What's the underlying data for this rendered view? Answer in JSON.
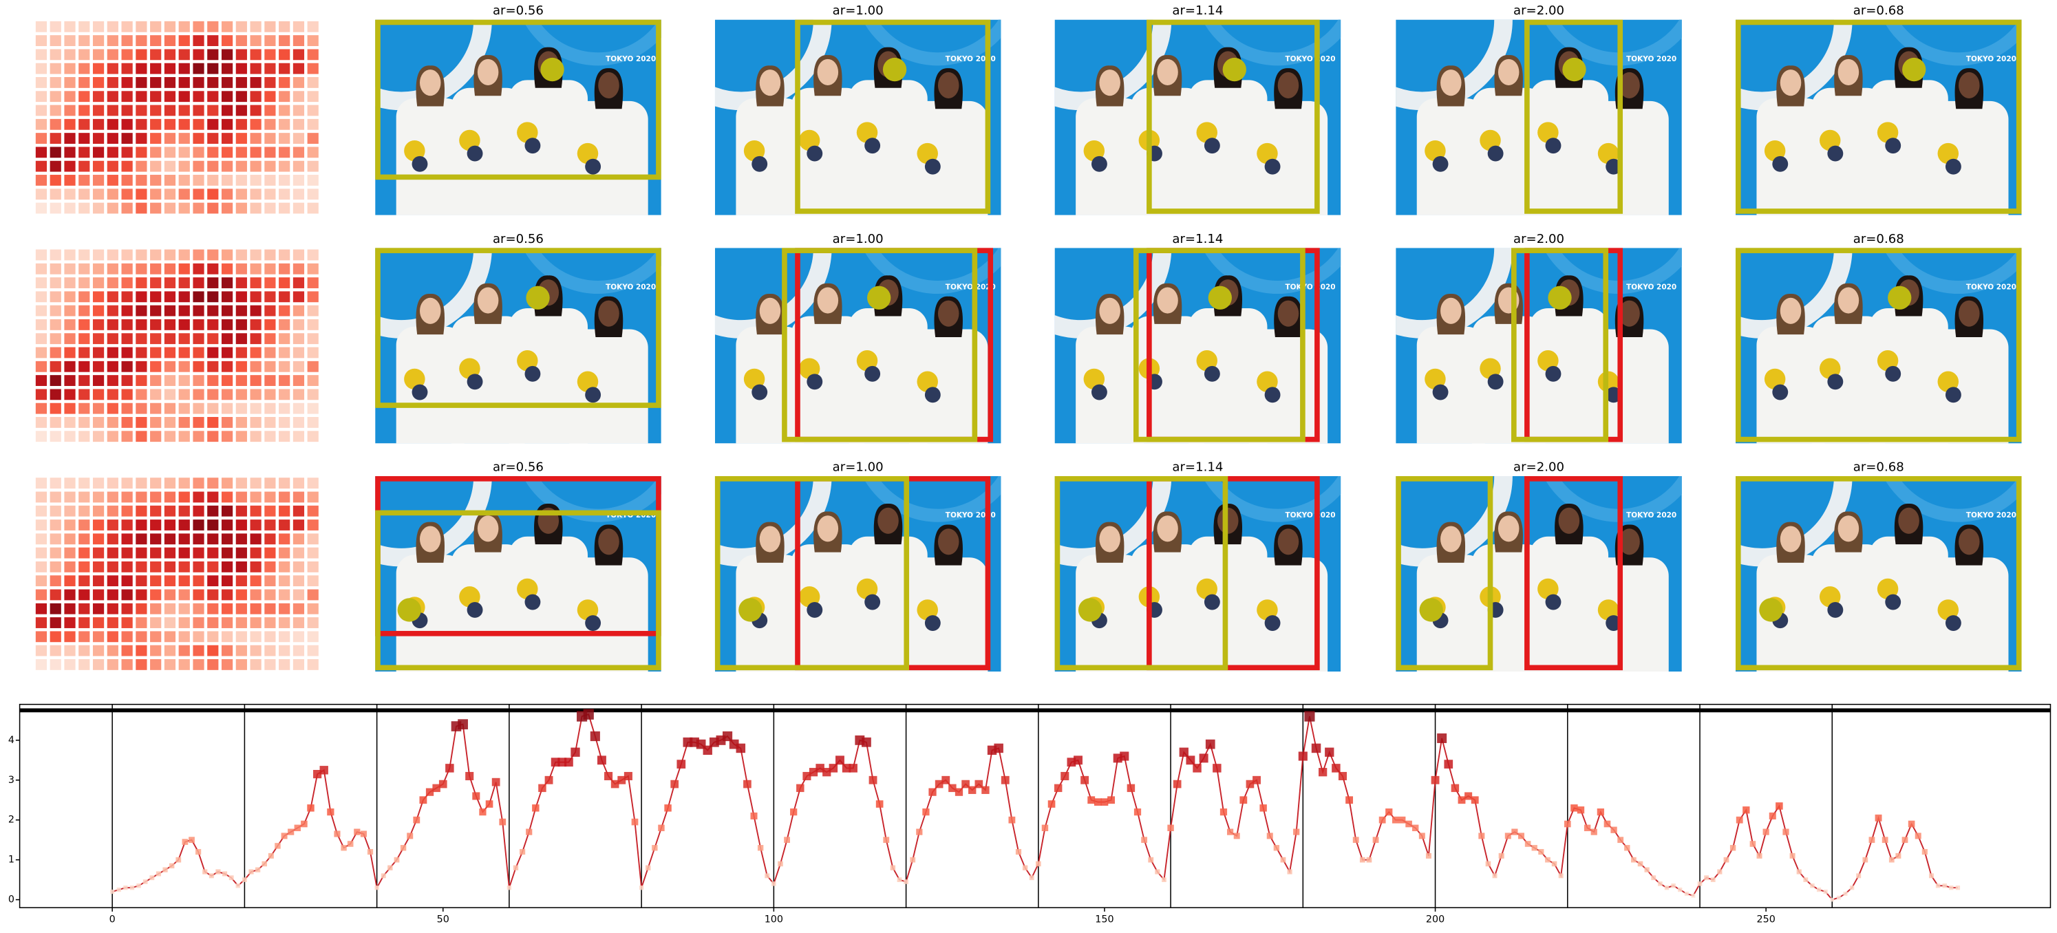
{
  "panels": {
    "titles": [
      "ar=0.56",
      "ar=1.00",
      "ar=1.14",
      "ar=2.00",
      "ar=0.68"
    ],
    "photo_text": "TOKYO 2020"
  },
  "chart_data": {
    "type": "line",
    "x": [
      0,
      1,
      2,
      3,
      4,
      5,
      6,
      7,
      8,
      9,
      10,
      11,
      12,
      13,
      14,
      15,
      16,
      17,
      18,
      19,
      20,
      21,
      22,
      23,
      24,
      25,
      26,
      27,
      28,
      29,
      30,
      31,
      32,
      33,
      34,
      35,
      36,
      37,
      38,
      39,
      40,
      41,
      42,
      43,
      44,
      45,
      46,
      47,
      48,
      49,
      50,
      51,
      52,
      53,
      54,
      55,
      56,
      57,
      58,
      59,
      60,
      61,
      62,
      63,
      64,
      65,
      66,
      67,
      68,
      69,
      70,
      71,
      72,
      73,
      74,
      75,
      76,
      77,
      78,
      79,
      80,
      81,
      82,
      83,
      84,
      85,
      86,
      87,
      88,
      89,
      90,
      91,
      92,
      93,
      94,
      95,
      96,
      97,
      98,
      99,
      100,
      101,
      102,
      103,
      104,
      105,
      106,
      107,
      108,
      109,
      110,
      111,
      112,
      113,
      114,
      115,
      116,
      117,
      118,
      119,
      120,
      121,
      122,
      123,
      124,
      125,
      126,
      127,
      128,
      129,
      130,
      131,
      132,
      133,
      134,
      135,
      136,
      137,
      138,
      139,
      140,
      141,
      142,
      143,
      144,
      145,
      146,
      147,
      148,
      149,
      150,
      151,
      152,
      153,
      154,
      155,
      156,
      157,
      158,
      159,
      160,
      161,
      162,
      163,
      164,
      165,
      166,
      167,
      168,
      169,
      170,
      171,
      172,
      173,
      174,
      175,
      176,
      177,
      178,
      179,
      180,
      181,
      182,
      183,
      184,
      185,
      186,
      187,
      188,
      189,
      190,
      191,
      192,
      193,
      194,
      195,
      196,
      197,
      198,
      199,
      200,
      201,
      202,
      203,
      204,
      205,
      206,
      207,
      208,
      209,
      210,
      211,
      212,
      213,
      214,
      215,
      216,
      217,
      218,
      219,
      220,
      221,
      222,
      223,
      224,
      225,
      226,
      227,
      228,
      229,
      230,
      231,
      232,
      233,
      234,
      235,
      236,
      237,
      238,
      239,
      240,
      241,
      242,
      243,
      244,
      245,
      246,
      247,
      248,
      249,
      250,
      251,
      252,
      253,
      254,
      255,
      256,
      257,
      258,
      259,
      260,
      261,
      262,
      263,
      264,
      265,
      266,
      267,
      268,
      269,
      270,
      271,
      272,
      273,
      274,
      275,
      276,
      277,
      278,
      279
    ],
    "values": [
      0.2,
      0.25,
      0.3,
      0.3,
      0.35,
      0.45,
      0.55,
      0.65,
      0.75,
      0.85,
      1.0,
      1.45,
      1.5,
      1.2,
      0.7,
      0.6,
      0.7,
      0.65,
      0.55,
      0.35,
      0.5,
      0.7,
      0.75,
      0.9,
      1.1,
      1.35,
      1.6,
      1.7,
      1.8,
      1.9,
      2.3,
      3.15,
      3.25,
      2.2,
      1.65,
      1.3,
      1.4,
      1.7,
      1.65,
      1.2,
      0.3,
      0.6,
      0.8,
      1.0,
      1.3,
      1.6,
      2.0,
      2.5,
      2.7,
      2.8,
      2.9,
      3.3,
      4.35,
      4.4,
      3.1,
      2.6,
      2.2,
      2.4,
      2.95,
      1.95,
      0.3,
      0.8,
      1.2,
      1.7,
      2.3,
      2.8,
      3.0,
      3.45,
      3.45,
      3.45,
      3.7,
      4.6,
      4.65,
      4.1,
      3.5,
      3.1,
      2.9,
      3.0,
      3.1,
      1.95,
      0.3,
      0.8,
      1.3,
      1.8,
      2.3,
      2.9,
      3.4,
      3.95,
      3.95,
      3.9,
      3.75,
      3.95,
      4.0,
      4.1,
      3.9,
      3.8,
      2.9,
      2.1,
      1.3,
      0.6,
      0.4,
      0.9,
      1.5,
      2.2,
      2.8,
      3.1,
      3.2,
      3.3,
      3.2,
      3.3,
      3.5,
      3.3,
      3.3,
      4.0,
      3.95,
      3.0,
      2.4,
      1.5,
      0.8,
      0.5,
      0.45,
      1.0,
      1.7,
      2.2,
      2.7,
      2.9,
      3.0,
      2.8,
      2.7,
      2.9,
      2.75,
      2.9,
      2.75,
      3.75,
      3.8,
      3.0,
      2.0,
      1.2,
      0.8,
      0.55,
      0.9,
      1.8,
      2.4,
      2.8,
      3.1,
      3.45,
      3.5,
      3.0,
      2.5,
      2.45,
      2.45,
      2.5,
      3.55,
      3.6,
      2.8,
      2.2,
      1.5,
      1.0,
      0.7,
      0.5,
      1.8,
      2.9,
      3.7,
      3.5,
      3.3,
      3.55,
      3.9,
      3.3,
      2.2,
      1.7,
      1.6,
      2.5,
      2.9,
      3.0,
      2.3,
      1.6,
      1.3,
      1.0,
      0.7,
      1.7,
      3.6,
      4.6,
      3.8,
      3.2,
      3.7,
      3.3,
      3.1,
      2.5,
      1.5,
      1.0,
      1.0,
      1.5,
      2.0,
      2.2,
      2.0,
      2.0,
      1.9,
      1.8,
      1.6,
      1.1,
      3.0,
      4.05,
      3.4,
      2.8,
      2.5,
      2.6,
      2.5,
      1.6,
      0.9,
      0.6,
      1.1,
      1.6,
      1.7,
      1.6,
      1.4,
      1.3,
      1.2,
      1.0,
      0.9,
      0.6,
      1.9,
      2.3,
      2.25,
      1.8,
      1.7,
      2.2,
      1.9,
      1.75,
      1.5,
      1.3,
      1.0,
      0.9,
      0.75,
      0.55,
      0.4,
      0.3,
      0.35,
      0.25,
      0.15,
      0.1,
      0.4,
      0.55,
      0.5,
      0.7,
      1.0,
      1.3,
      2.0,
      2.25,
      1.4,
      1.1,
      1.7,
      2.1,
      2.35,
      1.7,
      1.1,
      0.7,
      0.5,
      0.35,
      0.25,
      0.2,
      0.0,
      0.05,
      0.15,
      0.3,
      0.6,
      1.0,
      1.5,
      2.05,
      1.5,
      1.0,
      1.1,
      1.5,
      1.9,
      1.6,
      1.2,
      0.6,
      0.35,
      0.35,
      0.3,
      0.3
    ],
    "line_color": "#c8242b",
    "cmap": [
      "#fde5da",
      "#fcaa8e",
      "#f6553c",
      "#c4161c",
      "#8b0a14"
    ],
    "xlim": [
      -14,
      293
    ],
    "ylim": [
      -0.2,
      4.9
    ],
    "xticks": [
      0,
      50,
      100,
      150,
      200,
      250
    ],
    "yticks": [
      0,
      1,
      2,
      3,
      4
    ],
    "vlines": [
      0,
      20,
      40,
      60,
      80,
      100,
      120,
      140,
      160,
      180,
      200,
      220,
      240,
      260
    ],
    "hline": 4.75
  }
}
